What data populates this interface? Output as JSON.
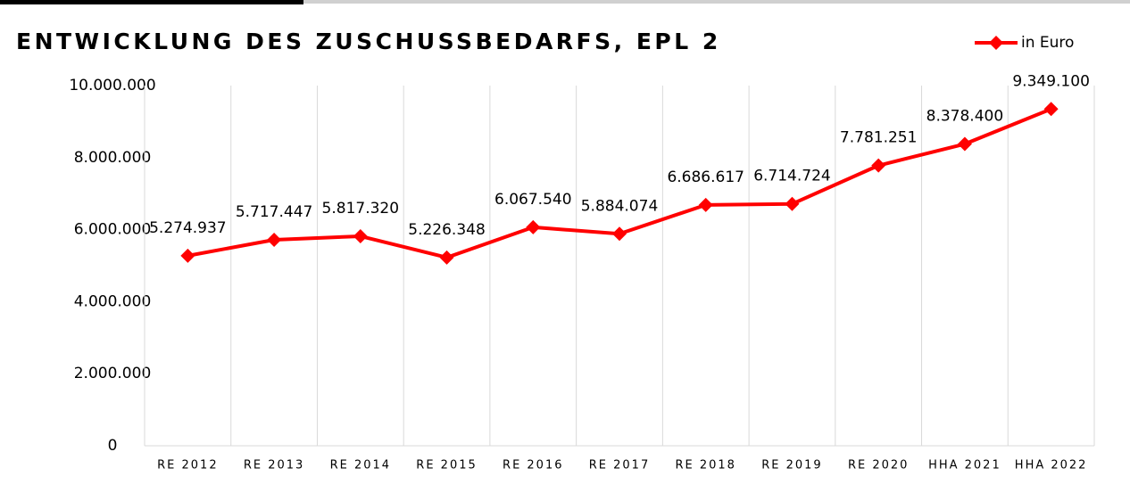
{
  "chart_data": {
    "type": "line",
    "title": "ENTWICKLUNG DES ZUSCHUSSBEDARFS, EPL 2",
    "categories": [
      "RE 2012",
      "RE 2013",
      "RE 2014",
      "RE 2015",
      "RE 2016",
      "RE 2017",
      "RE 2018",
      "RE 2019",
      "RE 2020",
      "HHA 2021",
      "HHA 2022"
    ],
    "series": [
      {
        "name": "in Euro",
        "color": "#ff0000",
        "values": [
          5274937,
          5717447,
          5817320,
          5226348,
          6067540,
          5884074,
          6686617,
          6714724,
          7781251,
          8378400,
          9349100
        ],
        "value_labels": [
          "5.274.937",
          "5.717.447",
          "5.817.320",
          "5.226.348",
          "6.067.540",
          "5.884.074",
          "6.686.617",
          "6.714.724",
          "7.781.251",
          "8.378.400",
          "9.349.100"
        ]
      }
    ],
    "ylim": [
      0,
      10000000
    ],
    "yticks": [
      0,
      {
        "value": 2000000,
        "label": "2.000.000"
      },
      {
        "value": 4000000,
        "label": "4.000.000"
      },
      {
        "value": 6000000,
        "label": "6.000.000"
      },
      {
        "value": 8000000,
        "label": "8.000.000"
      },
      {
        "value": 10000000,
        "label": "10.000.000"
      }
    ],
    "vertical_grid": true,
    "legend": "top-right"
  }
}
